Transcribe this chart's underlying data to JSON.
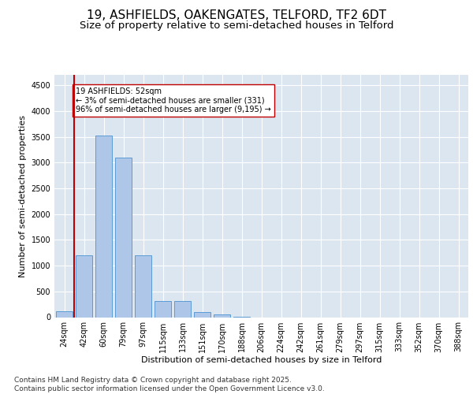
{
  "title1": "19, ASHFIELDS, OAKENGATES, TELFORD, TF2 6DT",
  "title2": "Size of property relative to semi-detached houses in Telford",
  "xlabel": "Distribution of semi-detached houses by size in Telford",
  "ylabel": "Number of semi-detached properties",
  "categories": [
    "24sqm",
    "42sqm",
    "60sqm",
    "79sqm",
    "97sqm",
    "115sqm",
    "133sqm",
    "151sqm",
    "170sqm",
    "188sqm",
    "206sqm",
    "224sqm",
    "242sqm",
    "261sqm",
    "279sqm",
    "297sqm",
    "315sqm",
    "333sqm",
    "352sqm",
    "370sqm",
    "388sqm"
  ],
  "values": [
    110,
    1200,
    3520,
    3100,
    1200,
    320,
    320,
    95,
    50,
    8,
    0,
    0,
    0,
    0,
    0,
    0,
    0,
    0,
    0,
    0,
    0
  ],
  "bar_color": "#aec6e8",
  "bar_edge_color": "#5b9bd5",
  "vline_color": "#c00000",
  "annotation_text": "19 ASHFIELDS: 52sqm\n← 3% of semi-detached houses are smaller (331)\n96% of semi-detached houses are larger (9,195) →",
  "annotation_box_color": "#ffffff",
  "annotation_box_edge_color": "#c00000",
  "ylim": [
    0,
    4700
  ],
  "yticks": [
    0,
    500,
    1000,
    1500,
    2000,
    2500,
    3000,
    3500,
    4000,
    4500
  ],
  "background_color": "#dce6f1",
  "footer_text": "Contains HM Land Registry data © Crown copyright and database right 2025.\nContains public sector information licensed under the Open Government Licence v3.0.",
  "title_fontsize": 11,
  "subtitle_fontsize": 9.5,
  "axis_label_fontsize": 8,
  "tick_fontsize": 7,
  "annotation_fontsize": 7,
  "footer_fontsize": 6.5
}
